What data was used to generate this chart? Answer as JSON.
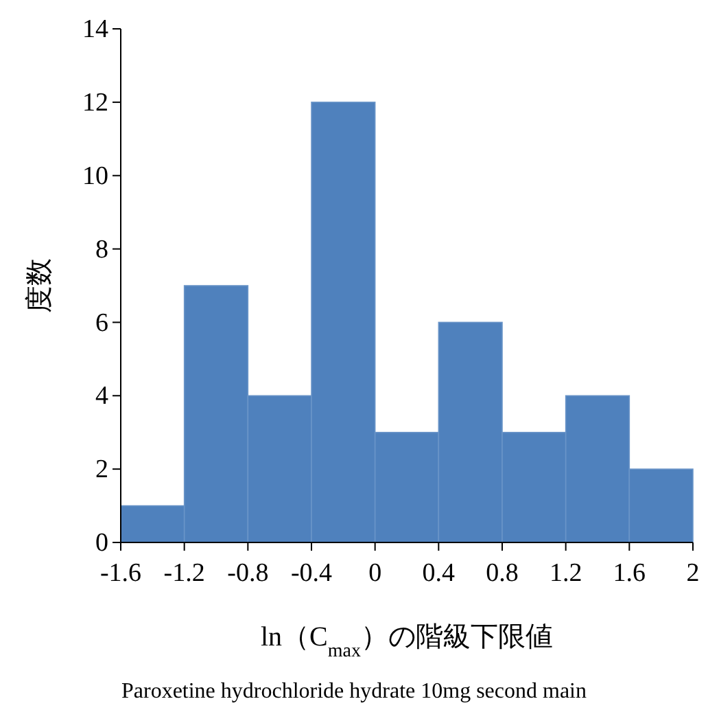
{
  "chart_data": {
    "type": "histogram",
    "xlabel": "ln（C$_{max}$）の階級下限値",
    "ylabel": "度数",
    "annotations": [
      "Paroxetine hydrochloride hydrate 10mg second main"
    ],
    "bins": [
      -1.6,
      -1.2,
      -0.8,
      -0.4,
      0,
      0.4,
      0.8,
      1.2,
      1.6,
      2
    ],
    "values": [
      1,
      7,
      4,
      12,
      3,
      6,
      3,
      4,
      2
    ],
    "color": "#4f81bd",
    "xlim": [
      -1.6,
      2
    ],
    "xticks": [
      -1.6,
      -1.2,
      -0.8,
      -0.4,
      0,
      0.4,
      0.8,
      1.2,
      1.6,
      2
    ],
    "ylim": [
      0,
      14
    ],
    "yticks": [
      0,
      2,
      4,
      6,
      8,
      10,
      12,
      14
    ],
    "grid": false
  }
}
